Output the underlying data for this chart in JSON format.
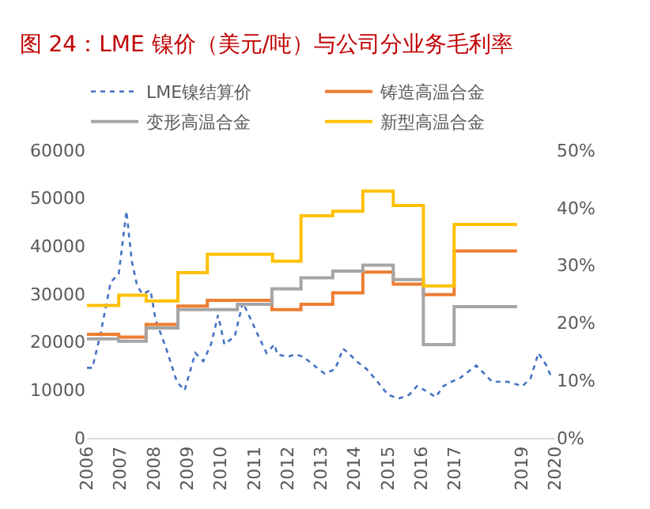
{
  "chart_data": {
    "type": "line",
    "title": "图 24：LME 镍价（美元/吨）与公司分业务毛利率",
    "xlim": [
      2006,
      2020
    ],
    "xticks": [
      2006,
      2007,
      2008,
      2009,
      2010,
      2011,
      2012,
      2013,
      2014,
      2015,
      2016,
      2017,
      2019,
      2020
    ],
    "ylim": [
      0,
      60000
    ],
    "yticks": [
      0,
      10000,
      20000,
      30000,
      40000,
      50000,
      60000
    ],
    "y2lim": [
      0,
      50
    ],
    "y2ticks": [
      {
        "value": 0,
        "label": "0%"
      },
      {
        "value": 10,
        "label": "10%"
      },
      {
        "value": 20,
        "label": "20%"
      },
      {
        "value": 30,
        "label": "30%"
      },
      {
        "value": 40,
        "label": "40%"
      },
      {
        "value": 50,
        "label": "50%"
      }
    ],
    "legend": "top",
    "marker": "none",
    "series": [
      {
        "name": "LME镍结算价",
        "color": "#4472c4",
        "line_style": "dotted",
        "x": [
          2006.0,
          2006.16,
          2006.39,
          2006.71,
          2006.95,
          2007.18,
          2007.34,
          2007.5,
          2007.66,
          2007.9,
          2008.05,
          2008.37,
          2008.69,
          2008.92,
          2009.24,
          2009.48,
          2009.71,
          2009.92,
          2010.11,
          2010.42,
          2010.66,
          2010.9,
          2011.13,
          2011.37,
          2011.61,
          2011.69,
          2012.0,
          2012.24,
          2012.48,
          2012.79,
          2013.11,
          2013.42,
          2013.66,
          2013.82,
          2014.06,
          2014.37,
          2014.69,
          2015.0,
          2015.32,
          2015.64,
          2015.87,
          2016.11,
          2016.43,
          2016.66,
          2016.9,
          2017.16,
          2017.64,
          2018.12,
          2018.58,
          2019.03,
          2019.27,
          2019.5,
          2019.74,
          2019.9
        ],
        "values": [
          14600,
          14600,
          21200,
          32500,
          34200,
          47300,
          36900,
          31700,
          30000,
          30800,
          24700,
          18600,
          11700,
          9900,
          17700,
          16000,
          19500,
          25600,
          19500,
          21200,
          28200,
          24700,
          21200,
          17700,
          19500,
          17400,
          16900,
          17400,
          16900,
          15100,
          13400,
          14300,
          18600,
          17700,
          16000,
          14300,
          11700,
          9000,
          8200,
          9000,
          10800,
          9900,
          8500,
          10800,
          11700,
          12500,
          15100,
          11700,
          11700,
          10800,
          12500,
          17700,
          15100,
          12500
        ]
      },
      {
        "name": "铸造高温合金",
        "color": "#ed7d31",
        "type": "step",
        "axis": "y2",
        "x": [
          2006,
          2006.95,
          2007.77,
          2008.72,
          2009.6,
          2011.53,
          2012.4,
          2013.35,
          2014.25,
          2015.16,
          2016.06,
          2016.98,
          2018.86
        ],
        "values": [
          18.0,
          17.5,
          19.7,
          22.9,
          23.9,
          22.3,
          23.2,
          25.2,
          28.8,
          26.7,
          24.9,
          32.5,
          32.5
        ]
      },
      {
        "name": "变形高温合金",
        "color": "#a5a5a5",
        "type": "step",
        "axis": "y2",
        "x": [
          2006,
          2006.95,
          2007.77,
          2008.72,
          2010.5,
          2011.53,
          2012.4,
          2013.35,
          2014.25,
          2015.16,
          2016.06,
          2016.98,
          2018.86
        ],
        "values": [
          17.2,
          16.8,
          19.1,
          22.3,
          23.2,
          25.9,
          27.8,
          29.0,
          30.0,
          27.5,
          16.2,
          22.8,
          22.8
        ]
      },
      {
        "name": "新型高温合金",
        "color": "#ffc000",
        "type": "step",
        "axis": "y2",
        "x": [
          2006,
          2006.95,
          2007.77,
          2008.72,
          2009.6,
          2011.55,
          2012.4,
          2013.35,
          2014.25,
          2015.16,
          2016.06,
          2016.98,
          2018.86
        ],
        "values": [
          23.0,
          24.8,
          23.8,
          28.7,
          31.9,
          30.7,
          38.6,
          39.4,
          42.9,
          40.4,
          26.4,
          37.1,
          37.1
        ]
      }
    ]
  }
}
